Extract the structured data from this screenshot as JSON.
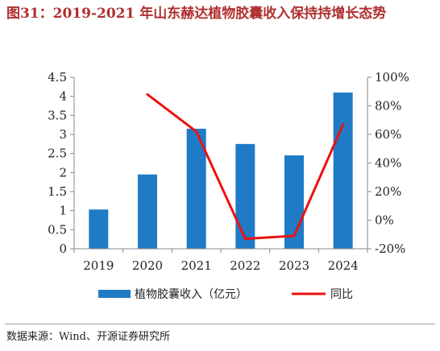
{
  "title": "图31：2019-2021 年山东赫达植物胶囊收入保持持增长态势",
  "source": "数据来源：Wind、开源证券研究所",
  "chart_data": {
    "type": "bar",
    "categories": [
      "2019",
      "2020",
      "2021",
      "2022",
      "2023",
      "2024"
    ],
    "series": [
      {
        "name": "植物胶囊收入（亿元）",
        "type": "bar",
        "axis": "left",
        "color": "#1f7bc6",
        "values": [
          1.03,
          1.95,
          3.15,
          2.75,
          2.45,
          4.1
        ]
      },
      {
        "name": "同比",
        "type": "line",
        "axis": "right",
        "color": "#ee1111",
        "values": [
          null,
          88,
          62,
          -13,
          -11,
          67
        ]
      }
    ],
    "y_left": {
      "min": 0,
      "max": 4.5,
      "ticks": [
        "0",
        "0.5",
        "1",
        "1.5",
        "2",
        "2.5",
        "3",
        "3.5",
        "4",
        "4.5"
      ]
    },
    "y_right": {
      "min": -20,
      "max": 100,
      "ticks": [
        "-20%",
        "0%",
        "20%",
        "40%",
        "60%",
        "80%",
        "100%"
      ]
    },
    "legend_position": "bottom",
    "grid": false
  }
}
